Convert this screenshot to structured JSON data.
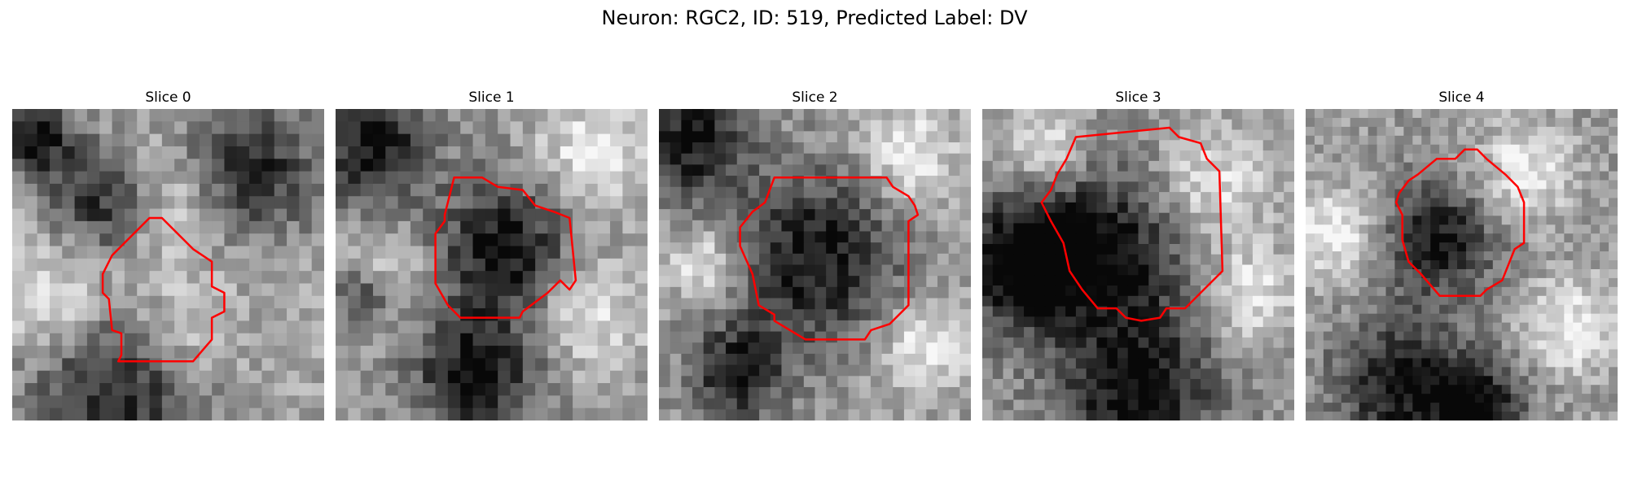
{
  "figure": {
    "title": "Neuron: RGC2, ID: 519, Predicted Label: DV",
    "outline_color": "#ff0000"
  },
  "panels": [
    {
      "title": "Slice 0",
      "image": {
        "grid": 25,
        "seed": 11,
        "dark_blobs": [
          [
            0.75,
            0.2,
            0.22
          ],
          [
            0.3,
            0.3,
            0.18
          ],
          [
            0.35,
            0.88,
            0.3
          ],
          [
            0.08,
            0.1,
            0.12
          ]
        ],
        "bright_blobs": [
          [
            0.5,
            0.3,
            0.2
          ],
          [
            0.15,
            0.6,
            0.2
          ],
          [
            0.55,
            0.72,
            0.18
          ]
        ],
        "base": 0.65
      },
      "outline": [
        [
          0.44,
          0.35
        ],
        [
          0.48,
          0.35
        ],
        [
          0.58,
          0.45
        ],
        [
          0.64,
          0.49
        ],
        [
          0.64,
          0.57
        ],
        [
          0.68,
          0.59
        ],
        [
          0.68,
          0.65
        ],
        [
          0.64,
          0.67
        ],
        [
          0.64,
          0.74
        ],
        [
          0.58,
          0.81
        ],
        [
          0.34,
          0.81
        ],
        [
          0.35,
          0.79
        ],
        [
          0.35,
          0.72
        ],
        [
          0.32,
          0.71
        ],
        [
          0.31,
          0.61
        ],
        [
          0.29,
          0.59
        ],
        [
          0.29,
          0.53
        ],
        [
          0.32,
          0.47
        ],
        [
          0.38,
          0.41
        ]
      ]
    },
    {
      "title": "Slice 1",
      "image": {
        "grid": 25,
        "seed": 23,
        "dark_blobs": [
          [
            0.12,
            0.12,
            0.18
          ],
          [
            0.55,
            0.45,
            0.22
          ],
          [
            0.45,
            0.85,
            0.2
          ],
          [
            0.1,
            0.6,
            0.1
          ]
        ],
        "bright_blobs": [
          [
            0.82,
            0.15,
            0.18
          ],
          [
            0.15,
            0.55,
            0.15
          ],
          [
            0.8,
            0.65,
            0.18
          ]
        ],
        "base": 0.6
      },
      "outline": [
        [
          0.38,
          0.22
        ],
        [
          0.47,
          0.22
        ],
        [
          0.52,
          0.25
        ],
        [
          0.6,
          0.26
        ],
        [
          0.64,
          0.31
        ],
        [
          0.7,
          0.33
        ],
        [
          0.75,
          0.35
        ],
        [
          0.77,
          0.55
        ],
        [
          0.75,
          0.58
        ],
        [
          0.72,
          0.55
        ],
        [
          0.68,
          0.59
        ],
        [
          0.6,
          0.65
        ],
        [
          0.59,
          0.67
        ],
        [
          0.4,
          0.67
        ],
        [
          0.36,
          0.63
        ],
        [
          0.32,
          0.56
        ],
        [
          0.32,
          0.4
        ],
        [
          0.35,
          0.36
        ],
        [
          0.35,
          0.34
        ]
      ]
    },
    {
      "title": "Slice 2",
      "image": {
        "grid": 28,
        "seed": 37,
        "dark_blobs": [
          [
            0.1,
            0.1,
            0.18
          ],
          [
            0.5,
            0.48,
            0.28
          ],
          [
            0.25,
            0.85,
            0.15
          ]
        ],
        "bright_blobs": [
          [
            0.8,
            0.15,
            0.15
          ],
          [
            0.15,
            0.5,
            0.12
          ],
          [
            0.85,
            0.75,
            0.15
          ]
        ],
        "base": 0.62
      },
      "outline": [
        [
          0.37,
          0.22
        ],
        [
          0.73,
          0.22
        ],
        [
          0.75,
          0.25
        ],
        [
          0.8,
          0.28
        ],
        [
          0.82,
          0.31
        ],
        [
          0.83,
          0.34
        ],
        [
          0.8,
          0.36
        ],
        [
          0.8,
          0.63
        ],
        [
          0.74,
          0.69
        ],
        [
          0.68,
          0.71
        ],
        [
          0.66,
          0.74
        ],
        [
          0.47,
          0.74
        ],
        [
          0.37,
          0.68
        ],
        [
          0.37,
          0.66
        ],
        [
          0.32,
          0.63
        ],
        [
          0.3,
          0.53
        ],
        [
          0.26,
          0.44
        ],
        [
          0.26,
          0.38
        ],
        [
          0.3,
          0.33
        ],
        [
          0.34,
          0.3
        ]
      ]
    },
    {
      "title": "Slice 3",
      "image": {
        "grid": 30,
        "seed": 53,
        "dark_blobs": [
          [
            0.4,
            0.45,
            0.3
          ],
          [
            0.12,
            0.5,
            0.2
          ],
          [
            0.5,
            0.93,
            0.25
          ]
        ],
        "bright_blobs": [
          [
            0.72,
            0.25,
            0.2
          ],
          [
            0.85,
            0.6,
            0.15
          ],
          [
            0.2,
            0.12,
            0.15
          ]
        ],
        "base": 0.6
      },
      "outline": [
        [
          0.3,
          0.09
        ],
        [
          0.6,
          0.06
        ],
        [
          0.63,
          0.09
        ],
        [
          0.7,
          0.11
        ],
        [
          0.72,
          0.16
        ],
        [
          0.76,
          0.2
        ],
        [
          0.77,
          0.52
        ],
        [
          0.72,
          0.57
        ],
        [
          0.65,
          0.64
        ],
        [
          0.59,
          0.64
        ],
        [
          0.57,
          0.67
        ],
        [
          0.51,
          0.68
        ],
        [
          0.46,
          0.67
        ],
        [
          0.43,
          0.64
        ],
        [
          0.37,
          0.64
        ],
        [
          0.32,
          0.58
        ],
        [
          0.28,
          0.52
        ],
        [
          0.26,
          0.43
        ],
        [
          0.22,
          0.36
        ],
        [
          0.19,
          0.3
        ],
        [
          0.22,
          0.26
        ],
        [
          0.24,
          0.21
        ],
        [
          0.27,
          0.16
        ]
      ]
    },
    {
      "title": "Slice 4",
      "image": {
        "grid": 35,
        "seed": 71,
        "dark_blobs": [
          [
            0.42,
            0.42,
            0.18
          ],
          [
            0.3,
            0.88,
            0.2
          ],
          [
            0.55,
            0.95,
            0.15
          ]
        ],
        "bright_blobs": [
          [
            0.7,
            0.2,
            0.15
          ],
          [
            0.1,
            0.4,
            0.15
          ],
          [
            0.85,
            0.7,
            0.15
          ]
        ],
        "base": 0.6
      },
      "outline": [
        [
          0.42,
          0.16
        ],
        [
          0.48,
          0.16
        ],
        [
          0.51,
          0.13
        ],
        [
          0.55,
          0.13
        ],
        [
          0.58,
          0.16
        ],
        [
          0.64,
          0.21
        ],
        [
          0.68,
          0.25
        ],
        [
          0.7,
          0.3
        ],
        [
          0.7,
          0.43
        ],
        [
          0.67,
          0.45
        ],
        [
          0.63,
          0.55
        ],
        [
          0.58,
          0.58
        ],
        [
          0.56,
          0.6
        ],
        [
          0.43,
          0.6
        ],
        [
          0.37,
          0.53
        ],
        [
          0.33,
          0.49
        ],
        [
          0.31,
          0.42
        ],
        [
          0.31,
          0.34
        ],
        [
          0.29,
          0.3
        ],
        [
          0.3,
          0.27
        ],
        [
          0.33,
          0.23
        ],
        [
          0.36,
          0.21
        ]
      ]
    }
  ]
}
